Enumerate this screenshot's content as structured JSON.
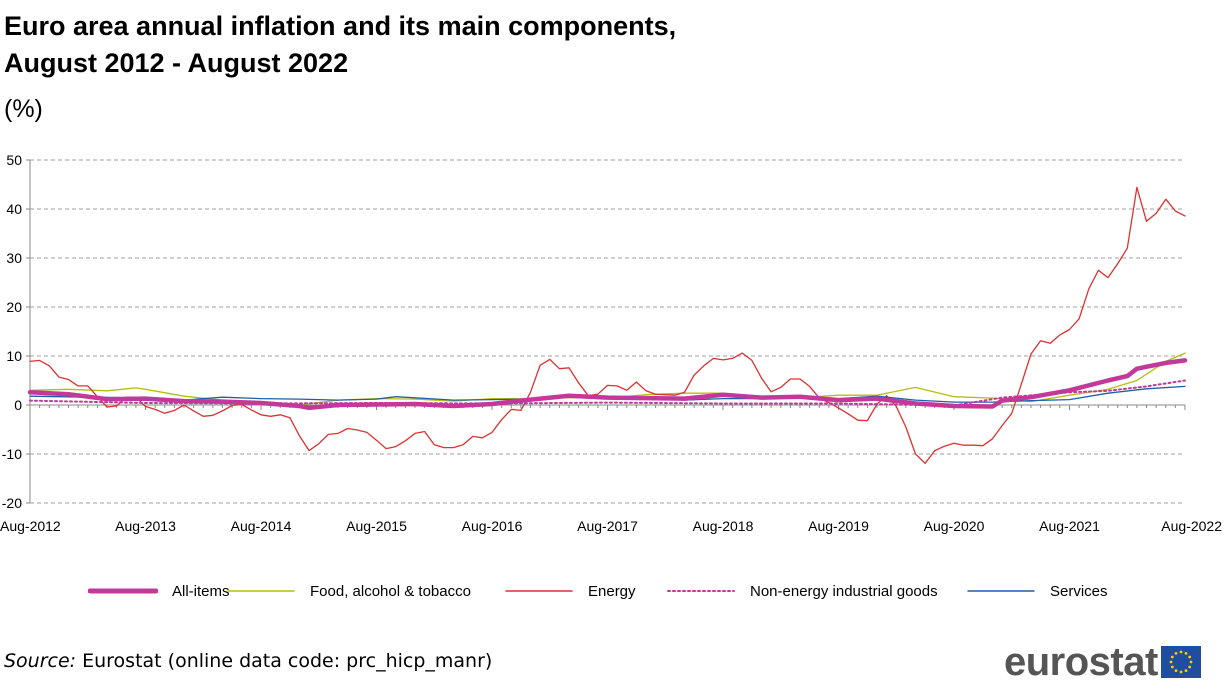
{
  "title_line1": "Euro area annual inflation and its main components,",
  "title_line2": "August 2012 - August 2022",
  "unit": "(%)",
  "source_label": "Source:",
  "source_text": " Eurostat (online data code: prc_hicp_manr)",
  "logo_text": "eurostat",
  "legend": [
    {
      "label": "All-items",
      "color": "#c2399a",
      "style": "thick"
    },
    {
      "label": "Food, alcohol & tobacco",
      "color": "#b6bd0f",
      "style": "solid"
    },
    {
      "label": "Energy",
      "color": "#dc3232",
      "style": "solid"
    },
    {
      "label": "Non-energy industrial goods",
      "color": "#c2399a",
      "style": "dotted"
    },
    {
      "label": "Services",
      "color": "#1f5fa8",
      "style": "solid"
    }
  ],
  "chart_data": {
    "type": "line",
    "title": "Euro area annual inflation and its main components, August 2012 - August 2022",
    "ylabel": "(%)",
    "ylim": [
      -20,
      50
    ],
    "yticks": [
      -20,
      -10,
      0,
      10,
      20,
      30,
      40,
      50
    ],
    "ytick_labels": [
      "-20",
      "-10",
      "0",
      "10",
      "20",
      "30",
      "40",
      "50"
    ],
    "xlim": [
      "2012-08",
      "2022-08"
    ],
    "xticks": [
      "2012-08",
      "2013-08",
      "2014-08",
      "2015-08",
      "2016-08",
      "2017-08",
      "2018-08",
      "2019-08",
      "2020-08",
      "2021-08",
      "2022-08"
    ],
    "xtick_labels": [
      "Aug-2012",
      "Aug-2013",
      "Aug-2014",
      "Aug-2015",
      "Aug-2016",
      "Aug-2017",
      "Aug-2018",
      "Aug-2019",
      "Aug-2020",
      "Aug-2021",
      "Aug-2022"
    ],
    "grid": "horizontal-dashed",
    "legend_position": "bottom",
    "series": [
      {
        "name": "All-items",
        "color": "#c2399a",
        "style": "thick",
        "points": [
          [
            "2012-08",
            2.6
          ],
          [
            "2012-12",
            2.2
          ],
          [
            "2013-04",
            1.2
          ],
          [
            "2013-08",
            1.3
          ],
          [
            "2013-12",
            0.8
          ],
          [
            "2014-04",
            0.7
          ],
          [
            "2014-08",
            0.4
          ],
          [
            "2014-12",
            -0.2
          ],
          [
            "2015-01",
            -0.6
          ],
          [
            "2015-04",
            0.0
          ],
          [
            "2015-08",
            0.1
          ],
          [
            "2015-12",
            0.2
          ],
          [
            "2016-04",
            -0.2
          ],
          [
            "2016-08",
            0.2
          ],
          [
            "2016-12",
            1.1
          ],
          [
            "2017-04",
            1.9
          ],
          [
            "2017-08",
            1.5
          ],
          [
            "2017-12",
            1.4
          ],
          [
            "2018-04",
            1.3
          ],
          [
            "2018-08",
            2.1
          ],
          [
            "2018-12",
            1.5
          ],
          [
            "2019-04",
            1.7
          ],
          [
            "2019-08",
            1.0
          ],
          [
            "2019-12",
            1.3
          ],
          [
            "2020-04",
            0.3
          ],
          [
            "2020-08",
            -0.2
          ],
          [
            "2020-12",
            -0.3
          ],
          [
            "2021-01",
            0.9
          ],
          [
            "2021-04",
            1.6
          ],
          [
            "2021-08",
            3.0
          ],
          [
            "2021-12",
            5.0
          ],
          [
            "2022-02",
            5.9
          ],
          [
            "2022-03",
            7.4
          ],
          [
            "2022-06",
            8.6
          ],
          [
            "2022-08",
            9.1
          ]
        ]
      },
      {
        "name": "Food, alcohol & tobacco",
        "color": "#b6bd0f",
        "style": "solid",
        "points": [
          [
            "2012-08",
            3.0
          ],
          [
            "2012-12",
            3.2
          ],
          [
            "2013-04",
            2.9
          ],
          [
            "2013-07",
            3.5
          ],
          [
            "2013-08",
            3.2
          ],
          [
            "2013-12",
            1.8
          ],
          [
            "2014-04",
            1.0
          ],
          [
            "2014-08",
            0.0
          ],
          [
            "2014-12",
            0.0
          ],
          [
            "2015-04",
            1.0
          ],
          [
            "2015-08",
            1.3
          ],
          [
            "2015-12",
            1.2
          ],
          [
            "2016-04",
            0.8
          ],
          [
            "2016-08",
            1.3
          ],
          [
            "2016-12",
            1.3
          ],
          [
            "2017-04",
            1.5
          ],
          [
            "2017-08",
            1.4
          ],
          [
            "2017-12",
            2.1
          ],
          [
            "2018-04",
            2.4
          ],
          [
            "2018-08",
            2.4
          ],
          [
            "2018-12",
            1.6
          ],
          [
            "2019-04",
            1.5
          ],
          [
            "2019-08",
            2.0
          ],
          [
            "2019-12",
            2.0
          ],
          [
            "2020-04",
            3.6
          ],
          [
            "2020-08",
            1.7
          ],
          [
            "2020-12",
            1.4
          ],
          [
            "2021-04",
            0.7
          ],
          [
            "2021-08",
            2.0
          ],
          [
            "2021-12",
            3.2
          ],
          [
            "2022-03",
            5.0
          ],
          [
            "2022-06",
            8.9
          ],
          [
            "2022-08",
            10.6
          ]
        ]
      },
      {
        "name": "Energy",
        "color": "#dc3232",
        "style": "solid",
        "points": [
          [
            "2012-08",
            8.9
          ],
          [
            "2012-09",
            9.1
          ],
          [
            "2012-10",
            8.0
          ],
          [
            "2012-11",
            5.7
          ],
          [
            "2012-12",
            5.2
          ],
          [
            "2013-01",
            3.9
          ],
          [
            "2013-02",
            3.9
          ],
          [
            "2013-03",
            1.7
          ],
          [
            "2013-04",
            -0.4
          ],
          [
            "2013-05",
            -0.2
          ],
          [
            "2013-06",
            1.6
          ],
          [
            "2013-07",
            1.6
          ],
          [
            "2013-08",
            -0.3
          ],
          [
            "2013-09",
            -0.9
          ],
          [
            "2013-10",
            -1.7
          ],
          [
            "2013-11",
            -1.1
          ],
          [
            "2013-12",
            0.0
          ],
          [
            "2014-01",
            -1.2
          ],
          [
            "2014-02",
            -2.3
          ],
          [
            "2014-03",
            -2.1
          ],
          [
            "2014-04",
            -1.2
          ],
          [
            "2014-05",
            -0.1
          ],
          [
            "2014-06",
            0.1
          ],
          [
            "2014-07",
            -1.0
          ],
          [
            "2014-08",
            -2.0
          ],
          [
            "2014-09",
            -2.3
          ],
          [
            "2014-10",
            -2.0
          ],
          [
            "2014-11",
            -2.6
          ],
          [
            "2014-12",
            -6.3
          ],
          [
            "2015-01",
            -9.3
          ],
          [
            "2015-02",
            -7.9
          ],
          [
            "2015-03",
            -6.0
          ],
          [
            "2015-04",
            -5.8
          ],
          [
            "2015-05",
            -4.8
          ],
          [
            "2015-06",
            -5.1
          ],
          [
            "2015-07",
            -5.6
          ],
          [
            "2015-08",
            -7.2
          ],
          [
            "2015-09",
            -8.9
          ],
          [
            "2015-10",
            -8.5
          ],
          [
            "2015-11",
            -7.3
          ],
          [
            "2015-12",
            -5.8
          ],
          [
            "2016-01",
            -5.4
          ],
          [
            "2016-02",
            -8.1
          ],
          [
            "2016-03",
            -8.7
          ],
          [
            "2016-04",
            -8.7
          ],
          [
            "2016-05",
            -8.1
          ],
          [
            "2016-06",
            -6.4
          ],
          [
            "2016-07",
            -6.7
          ],
          [
            "2016-08",
            -5.6
          ],
          [
            "2016-09",
            -3.0
          ],
          [
            "2016-10",
            -0.9
          ],
          [
            "2016-11",
            -1.1
          ],
          [
            "2016-12",
            2.6
          ],
          [
            "2017-01",
            8.1
          ],
          [
            "2017-02",
            9.3
          ],
          [
            "2017-03",
            7.4
          ],
          [
            "2017-04",
            7.6
          ],
          [
            "2017-05",
            4.5
          ],
          [
            "2017-06",
            1.9
          ],
          [
            "2017-07",
            2.2
          ],
          [
            "2017-08",
            4.0
          ],
          [
            "2017-09",
            3.9
          ],
          [
            "2017-10",
            3.0
          ],
          [
            "2017-11",
            4.7
          ],
          [
            "2017-12",
            2.9
          ],
          [
            "2018-01",
            2.2
          ],
          [
            "2018-02",
            2.1
          ],
          [
            "2018-03",
            2.0
          ],
          [
            "2018-04",
            2.6
          ],
          [
            "2018-05",
            6.1
          ],
          [
            "2018-06",
            8.0
          ],
          [
            "2018-07",
            9.5
          ],
          [
            "2018-08",
            9.2
          ],
          [
            "2018-09",
            9.5
          ],
          [
            "2018-10",
            10.6
          ],
          [
            "2018-11",
            9.1
          ],
          [
            "2018-12",
            5.5
          ],
          [
            "2019-01",
            2.7
          ],
          [
            "2019-02",
            3.6
          ],
          [
            "2019-03",
            5.3
          ],
          [
            "2019-04",
            5.3
          ],
          [
            "2019-05",
            3.8
          ],
          [
            "2019-06",
            1.4
          ],
          [
            "2019-07",
            0.5
          ],
          [
            "2019-08",
            -0.6
          ],
          [
            "2019-09",
            -1.8
          ],
          [
            "2019-10",
            -3.1
          ],
          [
            "2019-11",
            -3.2
          ],
          [
            "2019-12",
            0.2
          ],
          [
            "2020-01",
            1.9
          ],
          [
            "2020-02",
            -0.3
          ],
          [
            "2020-03",
            -4.5
          ],
          [
            "2020-04",
            -10.0
          ],
          [
            "2020-05",
            -11.9
          ],
          [
            "2020-06",
            -9.3
          ],
          [
            "2020-07",
            -8.4
          ],
          [
            "2020-08",
            -7.8
          ],
          [
            "2020-09",
            -8.2
          ],
          [
            "2020-10",
            -8.2
          ],
          [
            "2020-11",
            -8.3
          ],
          [
            "2020-12",
            -6.9
          ],
          [
            "2021-01",
            -4.2
          ],
          [
            "2021-02",
            -1.7
          ],
          [
            "2021-03",
            4.3
          ],
          [
            "2021-04",
            10.4
          ],
          [
            "2021-05",
            13.1
          ],
          [
            "2021-06",
            12.6
          ],
          [
            "2021-07",
            14.3
          ],
          [
            "2021-08",
            15.4
          ],
          [
            "2021-09",
            17.6
          ],
          [
            "2021-10",
            23.7
          ],
          [
            "2021-11",
            27.5
          ],
          [
            "2021-12",
            26.0
          ],
          [
            "2022-01",
            28.8
          ],
          [
            "2022-02",
            32.0
          ],
          [
            "2022-03",
            44.4
          ],
          [
            "2022-04",
            37.5
          ],
          [
            "2022-05",
            39.1
          ],
          [
            "2022-06",
            42.0
          ],
          [
            "2022-07",
            39.6
          ],
          [
            "2022-08",
            38.6
          ]
        ]
      },
      {
        "name": "Non-energy industrial goods",
        "color": "#c2399a",
        "style": "dotted",
        "points": [
          [
            "2012-08",
            0.9
          ],
          [
            "2013-08",
            0.4
          ],
          [
            "2014-08",
            0.3
          ],
          [
            "2015-08",
            0.4
          ],
          [
            "2016-08",
            0.3
          ],
          [
            "2017-08",
            0.5
          ],
          [
            "2018-08",
            0.3
          ],
          [
            "2019-08",
            0.3
          ],
          [
            "2020-08",
            -0.1
          ],
          [
            "2021-01",
            1.5
          ],
          [
            "2021-08",
            2.6
          ],
          [
            "2021-12",
            2.9
          ],
          [
            "2022-04",
            3.8
          ],
          [
            "2022-08",
            5.0
          ]
        ]
      },
      {
        "name": "Services",
        "color": "#1f5fa8",
        "style": "solid",
        "points": [
          [
            "2012-08",
            1.8
          ],
          [
            "2013-08",
            1.4
          ],
          [
            "2013-12",
            1.0
          ],
          [
            "2014-04",
            1.6
          ],
          [
            "2014-08",
            1.3
          ],
          [
            "2014-12",
            1.2
          ],
          [
            "2015-04",
            1.0
          ],
          [
            "2015-08",
            1.2
          ],
          [
            "2015-10",
            1.7
          ],
          [
            "2016-04",
            1.0
          ],
          [
            "2016-08",
            1.1
          ],
          [
            "2016-12",
            1.2
          ],
          [
            "2017-04",
            1.8
          ],
          [
            "2017-08",
            1.6
          ],
          [
            "2017-12",
            1.4
          ],
          [
            "2018-04",
            1.0
          ],
          [
            "2018-08",
            1.3
          ],
          [
            "2018-12",
            1.3
          ],
          [
            "2019-04",
            1.9
          ],
          [
            "2019-08",
            1.3
          ],
          [
            "2019-12",
            1.8
          ],
          [
            "2020-04",
            1.0
          ],
          [
            "2020-08",
            0.6
          ],
          [
            "2020-12",
            0.6
          ],
          [
            "2021-04",
            0.9
          ],
          [
            "2021-08",
            1.1
          ],
          [
            "2021-12",
            2.4
          ],
          [
            "2022-04",
            3.3
          ],
          [
            "2022-08",
            3.8
          ]
        ]
      }
    ]
  }
}
